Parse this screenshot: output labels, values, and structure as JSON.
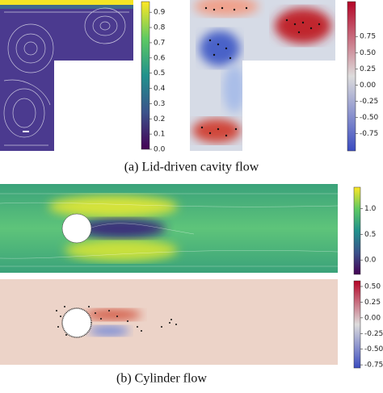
{
  "panels": [
    {
      "caption": "(a) Lid-driven cavity flow",
      "colorbars": [
        {
          "colormap": "viridis",
          "lim": [
            0,
            0.97
          ],
          "ticks": [
            {
              "value": 0,
              "label": "0.0"
            },
            0.1,
            0.2,
            0.3,
            0.4,
            0.5,
            0.6,
            0.7,
            0.8,
            0.9
          ]
        },
        {
          "colormap": "coolwarm",
          "lim": [
            -1.02,
            1.29
          ],
          "ticks": [
            0.75,
            {
              "value": 0.5,
              "label": "0.50"
            },
            0.25,
            {
              "value": 0,
              "label": "0.00"
            },
            -0.25,
            {
              "value": -0.5,
              "label": "-0.50"
            },
            -0.75
          ]
        }
      ]
    },
    {
      "caption": "(b) Cylinder flow",
      "colorbars": [
        {
          "colormap": "viridis",
          "lim": [
            -0.28,
            1.42
          ],
          "ticks": [
            {
              "value": 1,
              "label": "1.0"
            },
            0.5,
            {
              "value": 0,
              "label": "0.0"
            }
          ]
        },
        {
          "colormap": "coolwarm",
          "lim": [
            -0.8,
            0.59
          ],
          "ticks": [
            {
              "value": 0.5,
              "label": "0.50"
            },
            0.25,
            {
              "value": 0,
              "label": "0.00"
            },
            -0.25,
            {
              "value": -0.5,
              "label": "-0.50"
            },
            -0.75
          ]
        }
      ]
    }
  ]
}
